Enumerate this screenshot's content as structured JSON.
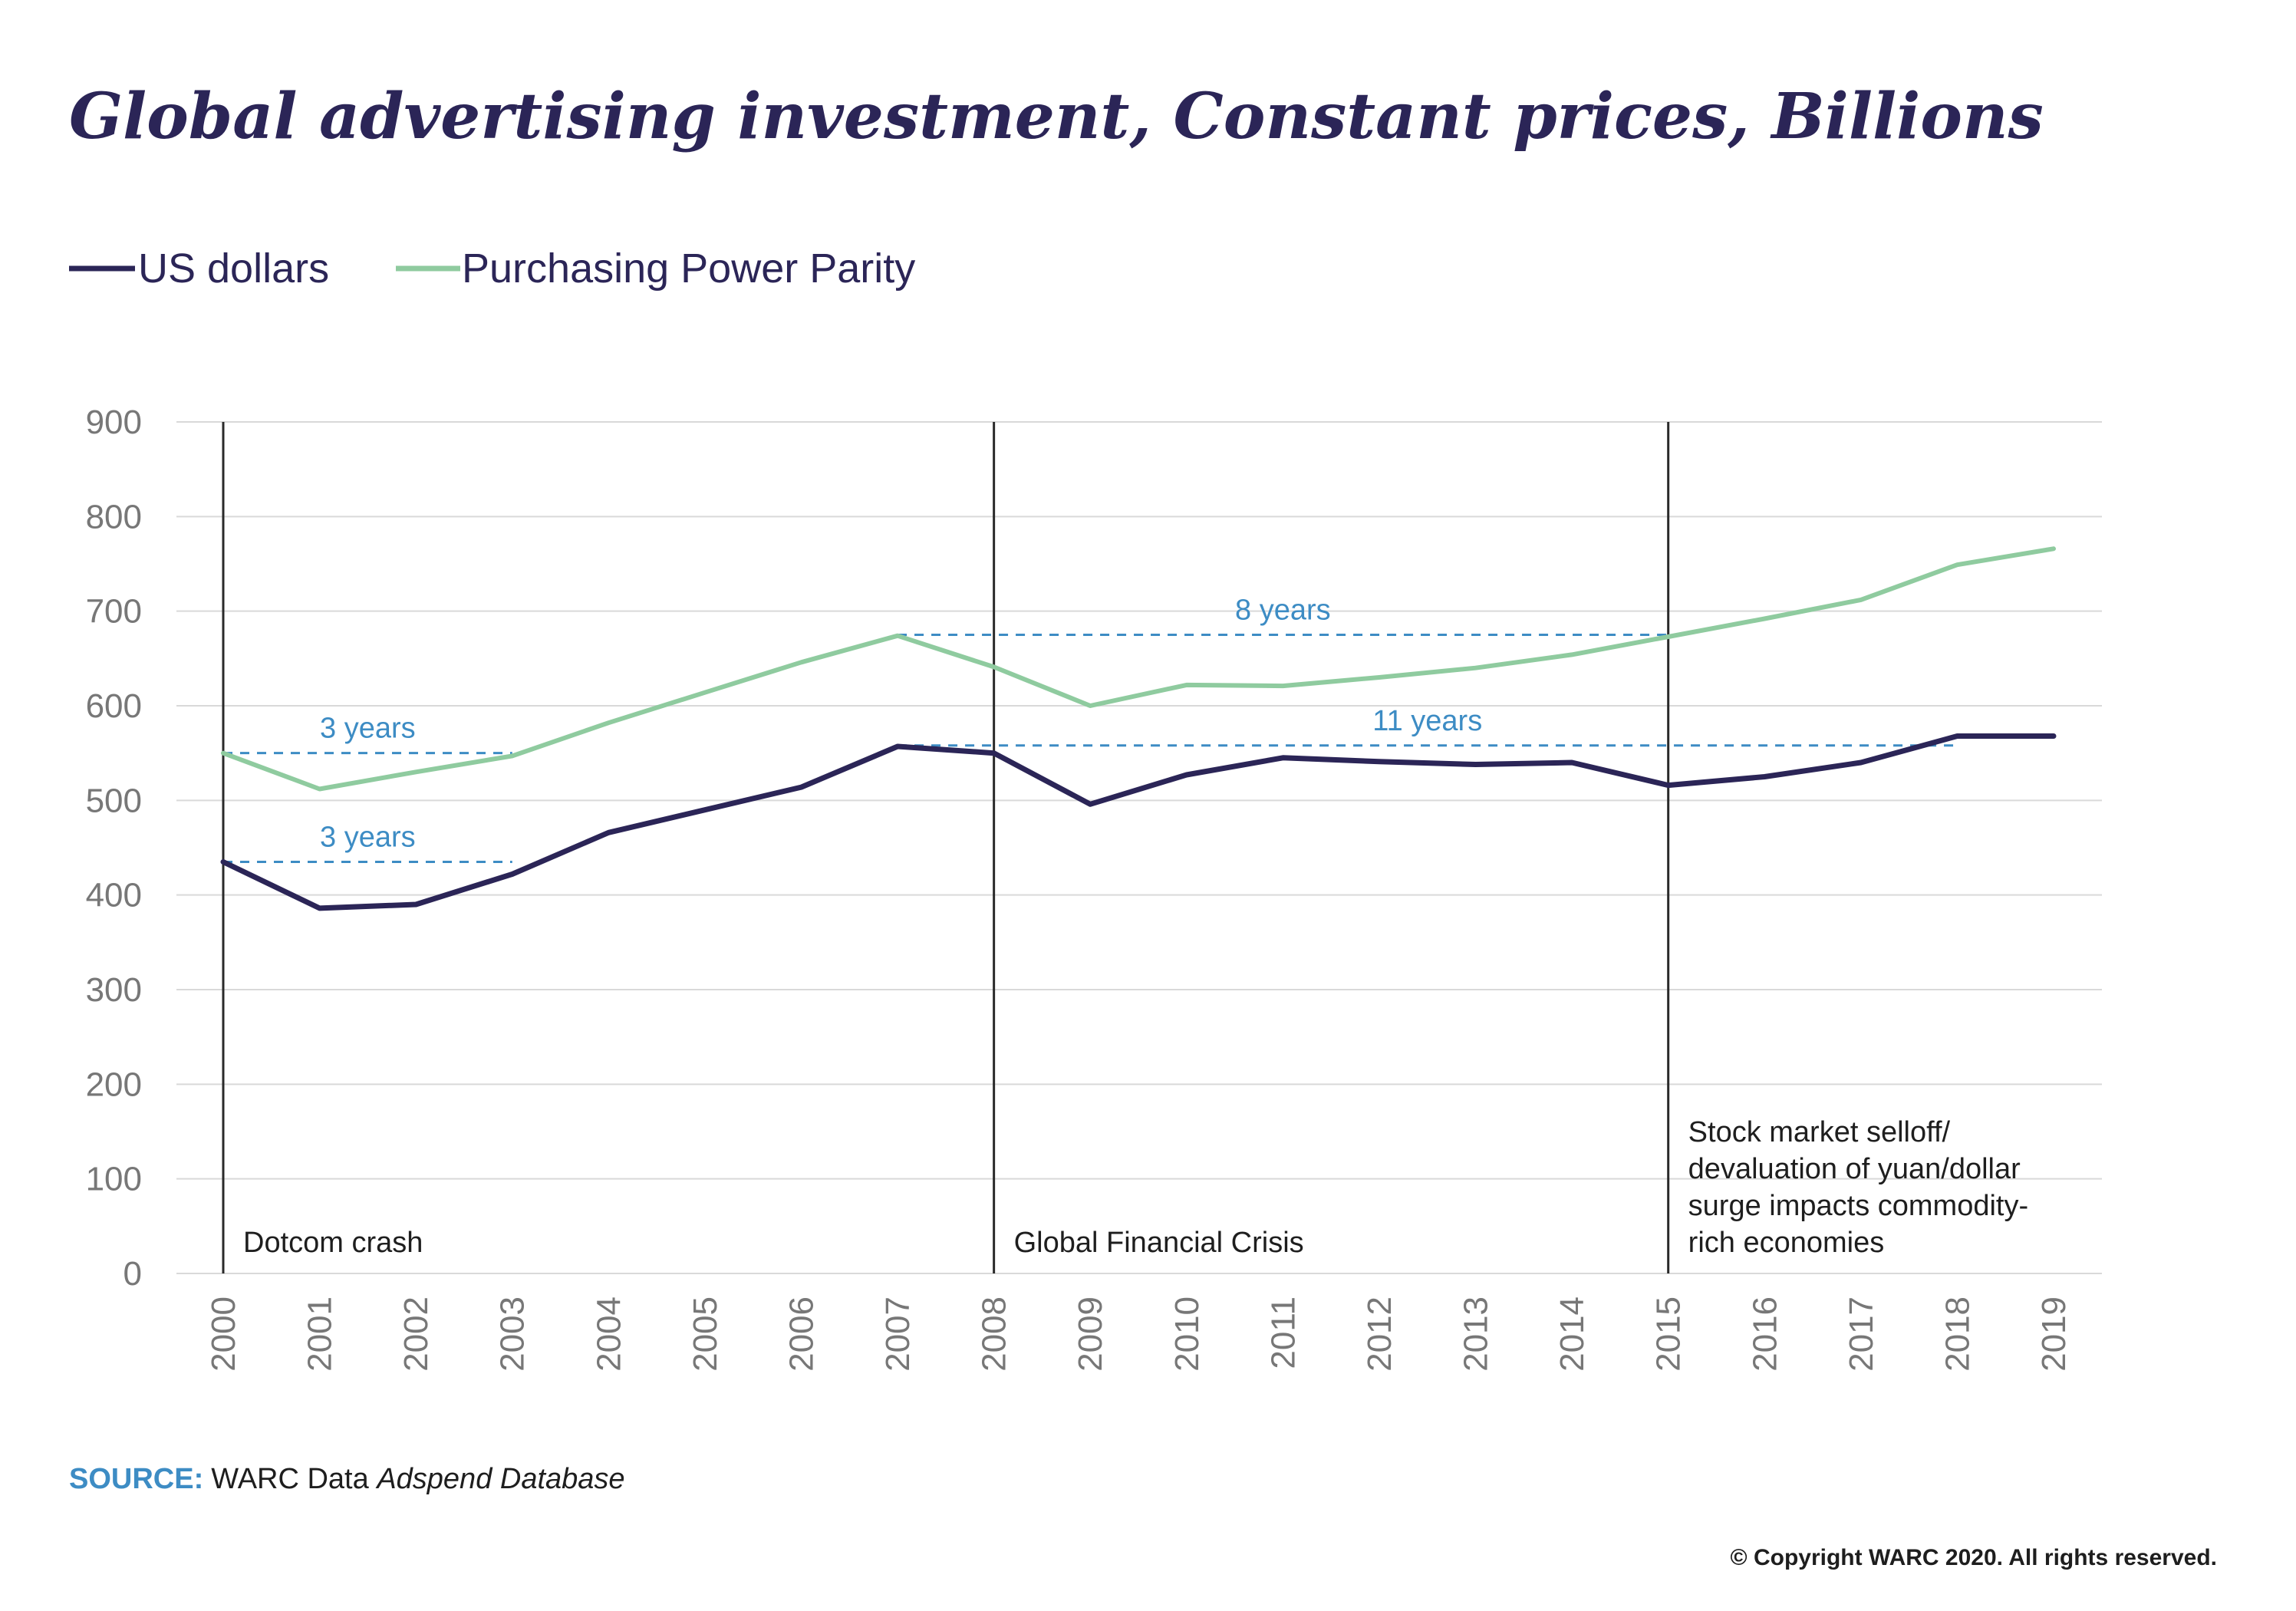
{
  "chart_data": {
    "type": "line",
    "title": "Global advertising investment, Constant prices, Billions",
    "xlabel": "",
    "ylabel": "",
    "ylim": [
      0,
      900
    ],
    "yticks": [
      0,
      100,
      200,
      300,
      400,
      500,
      600,
      700,
      800,
      900
    ],
    "grid": true,
    "legend_position": "top-left",
    "x": [
      "2000",
      "2001",
      "2002",
      "2003",
      "2004",
      "2005",
      "2006",
      "2007",
      "2008",
      "2009",
      "2010",
      "2011",
      "2012",
      "2013",
      "2014",
      "2015",
      "2016",
      "2017",
      "2018",
      "2019"
    ],
    "series": [
      {
        "name": "US dollars",
        "color": "#2b2557",
        "values": [
          435,
          386,
          390,
          422,
          466,
          490,
          514,
          557,
          550,
          496,
          527,
          545,
          541,
          538,
          540,
          516,
          525,
          540,
          568,
          568
        ]
      },
      {
        "name": "Purchasing Power Parity",
        "color": "#8fcb9f",
        "values": [
          550,
          512,
          530,
          547,
          582,
          614,
          646,
          674,
          641,
          600,
          622,
          621,
          630,
          640,
          654,
          673,
          692,
          712,
          749,
          766
        ]
      }
    ],
    "events": [
      {
        "x": "2000",
        "label": "Dotcom crash"
      },
      {
        "x": "2008",
        "label": "Global Financial Crisis"
      },
      {
        "x": "2015",
        "label": "Stock market selloff/ devaluation of yuan/dollar surge impacts commodity-rich economies",
        "lines": [
          "Stock market selloff/",
          "devaluation of yuan/dollar",
          "surge impacts commodity-",
          "rich economies"
        ]
      }
    ],
    "recovery_annotations": [
      {
        "label": "3 years",
        "series": "Purchasing Power Parity",
        "from": "2000",
        "to": "2003",
        "level": 550
      },
      {
        "label": "3 years",
        "series": "US dollars",
        "from": "2000",
        "to": "2003",
        "level": 435
      },
      {
        "label": "8 years",
        "series": "Purchasing Power Parity",
        "from": "2007",
        "to": "2015",
        "level": 675
      },
      {
        "label": "11 years",
        "series": "US dollars",
        "from": "2007",
        "to": "2018",
        "level": 558
      }
    ],
    "annotation_color": "#3d8cc4"
  },
  "footer": {
    "source_label": "SOURCE:",
    "source_text_plain": "WARC Data ",
    "source_text_italic": "Adspend Database",
    "copyright": "© Copyright WARC 2020. All rights reserved."
  }
}
